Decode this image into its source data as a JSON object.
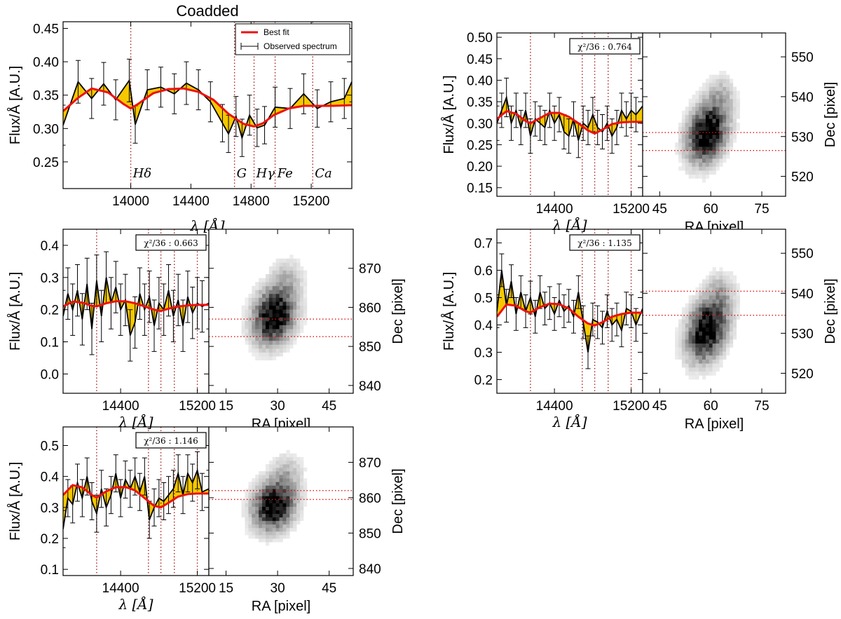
{
  "figure": {
    "coadded_title": "Coadded",
    "legend": {
      "best_fit": "Best fit",
      "observed": "Observed spectrum"
    },
    "flux_label": "Flux/Å [A.U.]",
    "lambda_label": "λ [Å]",
    "ra_label": "RA [pixel]",
    "dec_label": "Dec [pixel]",
    "colors": {
      "fit": "#ee1111",
      "fill": "#f5c800",
      "marker_line": "#aa2222",
      "obs": "#000000"
    }
  },
  "chart_data": [
    {
      "id": "coadded",
      "type": "line",
      "title": "Coadded",
      "xlabel": "λ [Å]",
      "ylabel": "Flux/Å [A.U.]",
      "xlim": [
        13550,
        15470
      ],
      "ylim": [
        0.21,
        0.46
      ],
      "xticks": [
        14000,
        14400,
        14800,
        15200
      ],
      "yticks": [
        0.25,
        0.3,
        0.35,
        0.4,
        0.45
      ],
      "spectral_lines": [
        {
          "label": "Hδ",
          "wavelength": 14000
        },
        {
          "label": "G",
          "wavelength": 14690
        },
        {
          "label": "Hγ",
          "wavelength": 14820
        },
        {
          "label": "Fe",
          "wavelength": 14960
        },
        {
          "label": "Ca",
          "wavelength": 15210
        }
      ],
      "legend": [
        "Best fit",
        "Observed spectrum"
      ],
      "observed": {
        "x": [
          13550,
          13650,
          13740,
          13820,
          13900,
          13990,
          14030,
          14110,
          14200,
          14290,
          14370,
          14450,
          14530,
          14610,
          14650,
          14700,
          14740,
          14790,
          14840,
          14890,
          14960,
          15060,
          15150,
          15240,
          15330,
          15420,
          15470
        ],
        "y": [
          0.305,
          0.37,
          0.345,
          0.367,
          0.343,
          0.372,
          0.306,
          0.358,
          0.362,
          0.352,
          0.368,
          0.358,
          0.34,
          0.308,
          0.292,
          0.318,
          0.286,
          0.32,
          0.301,
          0.305,
          0.332,
          0.33,
          0.352,
          0.33,
          0.34,
          0.345,
          0.37
        ],
        "err": [
          0.03,
          0.032,
          0.03,
          0.032,
          0.03,
          0.032,
          0.028,
          0.03,
          0.03,
          0.03,
          0.032,
          0.03,
          0.03,
          0.028,
          0.028,
          0.03,
          0.028,
          0.03,
          0.028,
          0.028,
          0.03,
          0.03,
          0.03,
          0.028,
          0.03,
          0.03,
          0.03
        ]
      },
      "fit": {
        "x": [
          13550,
          13650,
          13740,
          13850,
          13950,
          14000,
          14050,
          14150,
          14250,
          14350,
          14450,
          14550,
          14650,
          14750,
          14820,
          14880,
          14950,
          15050,
          15150,
          15250,
          15350,
          15470
        ],
        "y": [
          0.326,
          0.346,
          0.36,
          0.354,
          0.337,
          0.33,
          0.337,
          0.353,
          0.359,
          0.36,
          0.355,
          0.343,
          0.322,
          0.307,
          0.303,
          0.308,
          0.32,
          0.33,
          0.334,
          0.334,
          0.334,
          0.335
        ]
      }
    },
    {
      "id": "panel-right-top",
      "type": "line",
      "xlabel": "λ [Å]",
      "ylabel": "Flux/Å [A.U.]",
      "xlim": [
        13800,
        15320
      ],
      "ylim": [
        0.13,
        0.51
      ],
      "xticks": [
        14400,
        15200
      ],
      "yticks": [
        0.15,
        0.2,
        0.25,
        0.3,
        0.35,
        0.4,
        0.45,
        0.5
      ],
      "chi2_label": "χ²/36 : 0.764",
      "spectral_lines": [
        14150,
        14690,
        14820,
        14960,
        15200
      ],
      "observed": {
        "x": [
          13800,
          13850,
          13900,
          13950,
          14000,
          14050,
          14100,
          14150,
          14200,
          14250,
          14300,
          14350,
          14400,
          14450,
          14500,
          14550,
          14600,
          14650,
          14700,
          14750,
          14800,
          14850,
          14900,
          14950,
          15000,
          15050,
          15100,
          15150,
          15200,
          15250,
          15320
        ],
        "y": [
          0.3,
          0.33,
          0.36,
          0.3,
          0.33,
          0.29,
          0.33,
          0.27,
          0.31,
          0.3,
          0.29,
          0.33,
          0.3,
          0.32,
          0.28,
          0.27,
          0.31,
          0.26,
          0.3,
          0.29,
          0.32,
          0.29,
          0.28,
          0.3,
          0.27,
          0.29,
          0.33,
          0.31,
          0.33,
          0.32,
          0.34
        ],
        "err": [
          0.04,
          0.04,
          0.045,
          0.04,
          0.04,
          0.04,
          0.04,
          0.04,
          0.04,
          0.04,
          0.04,
          0.04,
          0.04,
          0.04,
          0.04,
          0.04,
          0.04,
          0.04,
          0.04,
          0.04,
          0.04,
          0.04,
          0.04,
          0.04,
          0.04,
          0.04,
          0.04,
          0.04,
          0.04,
          0.04,
          0.04
        ]
      },
      "fit": {
        "x": [
          13800,
          13900,
          14000,
          14100,
          14150,
          14250,
          14350,
          14450,
          14550,
          14650,
          14750,
          14820,
          14900,
          15000,
          15100,
          15200,
          15320
        ],
        "y": [
          0.31,
          0.328,
          0.322,
          0.305,
          0.3,
          0.312,
          0.324,
          0.324,
          0.315,
          0.3,
          0.283,
          0.276,
          0.285,
          0.298,
          0.302,
          0.303,
          0.303
        ]
      }
    },
    {
      "id": "image-right-top",
      "type": "heatmap",
      "xlabel": "RA [pixel]",
      "ylabel": "Dec [pixel]",
      "xlim": [
        40,
        82
      ],
      "ylim": [
        515,
        556
      ],
      "xticks": [
        45,
        60,
        75
      ],
      "yticks": [
        520,
        530,
        540,
        550
      ],
      "source_center": [
        59,
        531
      ],
      "slit_lines": [
        531,
        526.5
      ]
    },
    {
      "id": "panel-left-mid",
      "type": "line",
      "xlabel": "λ [Å]",
      "ylabel": "Flux/Å [A.U.]",
      "xlim": [
        13800,
        15320
      ],
      "ylim": [
        -0.06,
        0.45
      ],
      "xticks": [
        14400,
        15200
      ],
      "yticks": [
        0.0,
        0.1,
        0.2,
        0.3,
        0.4
      ],
      "chi2_label": "χ²/36 : 0.663",
      "spectral_lines": [
        14150,
        14690,
        14820,
        14960,
        15200
      ],
      "observed": {
        "x": [
          13800,
          13850,
          13900,
          13950,
          14000,
          14050,
          14100,
          14150,
          14200,
          14250,
          14300,
          14350,
          14400,
          14450,
          14500,
          14550,
          14600,
          14650,
          14700,
          14750,
          14800,
          14850,
          14900,
          14950,
          15000,
          15050,
          15100,
          15150,
          15200,
          15250,
          15320
        ],
        "y": [
          0.18,
          0.25,
          0.2,
          0.26,
          0.17,
          0.28,
          0.14,
          0.29,
          0.18,
          0.3,
          0.22,
          0.27,
          0.2,
          0.23,
          0.12,
          0.16,
          0.25,
          0.2,
          0.24,
          0.15,
          0.22,
          0.2,
          0.26,
          0.18,
          0.23,
          0.15,
          0.24,
          0.19,
          0.22,
          0.21,
          0.22
        ],
        "err": [
          0.08,
          0.08,
          0.08,
          0.08,
          0.08,
          0.08,
          0.08,
          0.08,
          0.08,
          0.08,
          0.08,
          0.08,
          0.08,
          0.08,
          0.08,
          0.08,
          0.08,
          0.08,
          0.08,
          0.08,
          0.08,
          0.08,
          0.08,
          0.08,
          0.08,
          0.08,
          0.08,
          0.08,
          0.08,
          0.08,
          0.08
        ]
      },
      "fit": {
        "x": [
          13800,
          13900,
          14000,
          14100,
          14150,
          14250,
          14350,
          14450,
          14550,
          14650,
          14750,
          14820,
          14900,
          15000,
          15100,
          15200,
          15320
        ],
        "y": [
          0.21,
          0.225,
          0.222,
          0.212,
          0.21,
          0.22,
          0.226,
          0.226,
          0.22,
          0.21,
          0.2,
          0.196,
          0.203,
          0.21,
          0.213,
          0.215,
          0.215
        ]
      }
    },
    {
      "id": "image-left-mid",
      "type": "heatmap",
      "xlabel": "RA [pixel]",
      "ylabel": "Dec [pixel]",
      "xlim": [
        10,
        52
      ],
      "ylim": [
        838,
        880
      ],
      "xticks": [
        15,
        30,
        45
      ],
      "yticks": [
        840,
        850,
        860,
        870
      ],
      "source_center": [
        29,
        858
      ],
      "slit_lines": [
        857,
        852.5
      ]
    },
    {
      "id": "panel-right-mid",
      "type": "line",
      "xlabel": "λ [Å]",
      "ylabel": "Flux/Å [A.U.]",
      "xlim": [
        13800,
        15320
      ],
      "ylim": [
        0.15,
        0.75
      ],
      "xticks": [
        14400,
        15200
      ],
      "yticks": [
        0.2,
        0.3,
        0.4,
        0.5,
        0.6,
        0.7
      ],
      "chi2_label": "χ²/36 : 1.135",
      "spectral_lines": [
        14150,
        14690,
        14820,
        14960,
        15200
      ],
      "observed": {
        "x": [
          13800,
          13850,
          13900,
          13950,
          14000,
          14050,
          14100,
          14150,
          14200,
          14250,
          14300,
          14350,
          14400,
          14450,
          14500,
          14550,
          14600,
          14650,
          14700,
          14750,
          14800,
          14850,
          14900,
          14950,
          15000,
          15050,
          15100,
          15150,
          15200,
          15250,
          15320
        ],
        "y": [
          0.45,
          0.6,
          0.47,
          0.56,
          0.44,
          0.52,
          0.45,
          0.5,
          0.43,
          0.52,
          0.46,
          0.48,
          0.44,
          0.49,
          0.45,
          0.47,
          0.43,
          0.52,
          0.41,
          0.3,
          0.42,
          0.41,
          0.39,
          0.45,
          0.4,
          0.42,
          0.38,
          0.46,
          0.45,
          0.4,
          0.46
        ],
        "err": [
          0.06,
          0.06,
          0.06,
          0.06,
          0.06,
          0.06,
          0.06,
          0.06,
          0.06,
          0.06,
          0.06,
          0.06,
          0.06,
          0.06,
          0.06,
          0.06,
          0.06,
          0.06,
          0.06,
          0.06,
          0.06,
          0.06,
          0.06,
          0.06,
          0.06,
          0.06,
          0.06,
          0.06,
          0.06,
          0.06,
          0.06
        ]
      },
      "fit": {
        "x": [
          13800,
          13900,
          14000,
          14100,
          14150,
          14250,
          14350,
          14450,
          14550,
          14650,
          14750,
          14820,
          14900,
          15000,
          15100,
          15200,
          15320
        ],
        "y": [
          0.43,
          0.475,
          0.47,
          0.45,
          0.445,
          0.465,
          0.478,
          0.476,
          0.46,
          0.43,
          0.405,
          0.398,
          0.41,
          0.43,
          0.44,
          0.445,
          0.445
        ]
      }
    },
    {
      "id": "image-right-mid",
      "type": "heatmap",
      "xlabel": "RA [pixel]",
      "ylabel": "Dec [pixel]",
      "xlim": [
        40,
        82
      ],
      "ylim": [
        515,
        556
      ],
      "xticks": [
        45,
        60,
        75
      ],
      "yticks": [
        520,
        530,
        540,
        550
      ],
      "source_center": [
        59,
        531
      ],
      "slit_lines": [
        540.5,
        534.5
      ]
    },
    {
      "id": "panel-left-bottom",
      "type": "line",
      "xlabel": "λ [Å]",
      "ylabel": "Flux/Å [A.U.]",
      "xlim": [
        13800,
        15320
      ],
      "ylim": [
        0.08,
        0.56
      ],
      "xticks": [
        14400,
        15200
      ],
      "yticks": [
        0.1,
        0.2,
        0.3,
        0.4,
        0.5
      ],
      "chi2_label": "χ²/36 : 1.146",
      "spectral_lines": [
        14150,
        14690,
        14820,
        14960,
        15200
      ],
      "observed": {
        "x": [
          13800,
          13850,
          13900,
          13950,
          14000,
          14050,
          14100,
          14150,
          14200,
          14250,
          14300,
          14350,
          14400,
          14450,
          14500,
          14550,
          14600,
          14650,
          14700,
          14750,
          14800,
          14850,
          14900,
          14950,
          15000,
          15050,
          15100,
          15150,
          15200,
          15250,
          15320
        ],
        "y": [
          0.23,
          0.33,
          0.31,
          0.38,
          0.33,
          0.4,
          0.32,
          0.28,
          0.36,
          0.3,
          0.34,
          0.41,
          0.33,
          0.39,
          0.36,
          0.4,
          0.35,
          0.4,
          0.26,
          0.3,
          0.33,
          0.32,
          0.34,
          0.36,
          0.41,
          0.34,
          0.41,
          0.38,
          0.42,
          0.35,
          0.36
        ],
        "err": [
          0.06,
          0.06,
          0.06,
          0.06,
          0.06,
          0.06,
          0.06,
          0.06,
          0.06,
          0.06,
          0.06,
          0.06,
          0.06,
          0.06,
          0.06,
          0.06,
          0.06,
          0.06,
          0.06,
          0.06,
          0.06,
          0.06,
          0.06,
          0.06,
          0.06,
          0.06,
          0.06,
          0.06,
          0.06,
          0.06,
          0.06
        ]
      },
      "fit": {
        "x": [
          13800,
          13900,
          14000,
          14100,
          14150,
          14250,
          14350,
          14450,
          14550,
          14650,
          14750,
          14820,
          14900,
          15000,
          15100,
          15200,
          15320
        ],
        "y": [
          0.34,
          0.372,
          0.365,
          0.34,
          0.332,
          0.352,
          0.365,
          0.366,
          0.355,
          0.33,
          0.305,
          0.3,
          0.315,
          0.335,
          0.343,
          0.345,
          0.345
        ]
      }
    },
    {
      "id": "image-left-bottom",
      "type": "heatmap",
      "xlabel": "RA [pixel]",
      "ylabel": "Dec [pixel]",
      "xlim": [
        10,
        52
      ],
      "ylim": [
        838,
        880
      ],
      "xticks": [
        15,
        30,
        45
      ],
      "yticks": [
        840,
        850,
        860,
        870
      ],
      "source_center": [
        29,
        858
      ],
      "slit_lines": [
        862,
        859.5
      ]
    }
  ]
}
